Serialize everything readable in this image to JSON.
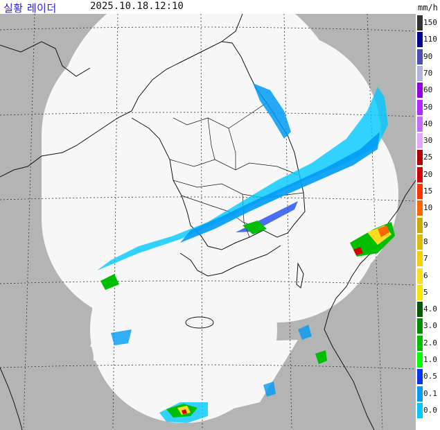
{
  "header": {
    "title": "실황 레이더",
    "timestamp": "2025.10.18.12:10",
    "unit": "mm/h"
  },
  "legend": {
    "levels": [
      {
        "label": "150",
        "color": "#333333"
      },
      {
        "label": "110",
        "color": "#000390"
      },
      {
        "label": "90",
        "color": "#4c4eb1"
      },
      {
        "label": "70",
        "color": "#b3b4de"
      },
      {
        "label": "60",
        "color": "#9300e4"
      },
      {
        "label": "50",
        "color": "#b329ff"
      },
      {
        "label": "40",
        "color": "#c969ff"
      },
      {
        "label": "30",
        "color": "#e0a9ff"
      },
      {
        "label": "25",
        "color": "#b40000"
      },
      {
        "label": "20",
        "color": "#d20000"
      },
      {
        "label": "15",
        "color": "#ff3200"
      },
      {
        "label": "10",
        "color": "#ff6600"
      },
      {
        "label": "9",
        "color": "#ccaa00"
      },
      {
        "label": "8",
        "color": "#e0b900"
      },
      {
        "label": "7",
        "color": "#f9cd00"
      },
      {
        "label": "6",
        "color": "#ffdc1f"
      },
      {
        "label": "5",
        "color": "#ffe100"
      },
      {
        "label": "4.0",
        "color": "#005a00"
      },
      {
        "label": "3.0",
        "color": "#008c00"
      },
      {
        "label": "2.0",
        "color": "#00be00"
      },
      {
        "label": "1.0",
        "color": "#00ff00"
      },
      {
        "label": "0.5",
        "color": "#0033f5"
      },
      {
        "label": "0.1",
        "color": "#009bf5"
      },
      {
        "label": "0.0",
        "color": "#00c8ff"
      }
    ]
  },
  "map_colors": {
    "background": "#b4b4b4",
    "coverage": "#f7f7f7",
    "coastline": "#111111",
    "grid": "#333333",
    "rain_light": "#00c8ff",
    "rain_blue": "#009bf5",
    "rain_dark": "#0033f5",
    "rain_green": "#00be00",
    "rain_yellow": "#ffdc1f",
    "rain_orange": "#ff6600",
    "rain_red": "#d20000"
  }
}
